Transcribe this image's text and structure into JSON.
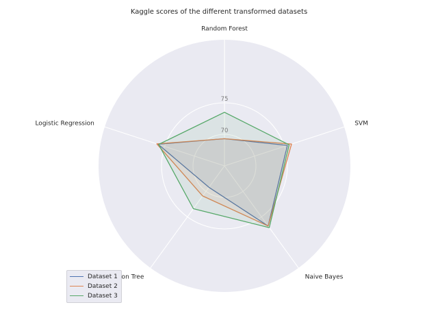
{
  "chart_data": {
    "type": "radar",
    "title": "Kaggle scores of the different transformed datasets",
    "categories": [
      "Random Forest",
      "SVM",
      "Naive Bayes",
      "Decision Tree",
      "Logistic Regression"
    ],
    "rlim": [
      65,
      85
    ],
    "rticks": [
      70,
      75
    ],
    "grid": true,
    "legend_position": "lower-left",
    "series": [
      {
        "name": "Dataset 1",
        "color": "#4c72b0",
        "values": [
          69.3,
          75.5,
          76.8,
          69.2,
          76.1
        ]
      },
      {
        "name": "Dataset 2",
        "color": "#dd8452",
        "values": [
          69.3,
          76.2,
          76.8,
          70.9,
          76.3
        ]
      },
      {
        "name": "Dataset 3",
        "color": "#55a868",
        "values": [
          73.5,
          75.8,
          77.1,
          73.4,
          76.0
        ]
      }
    ]
  }
}
